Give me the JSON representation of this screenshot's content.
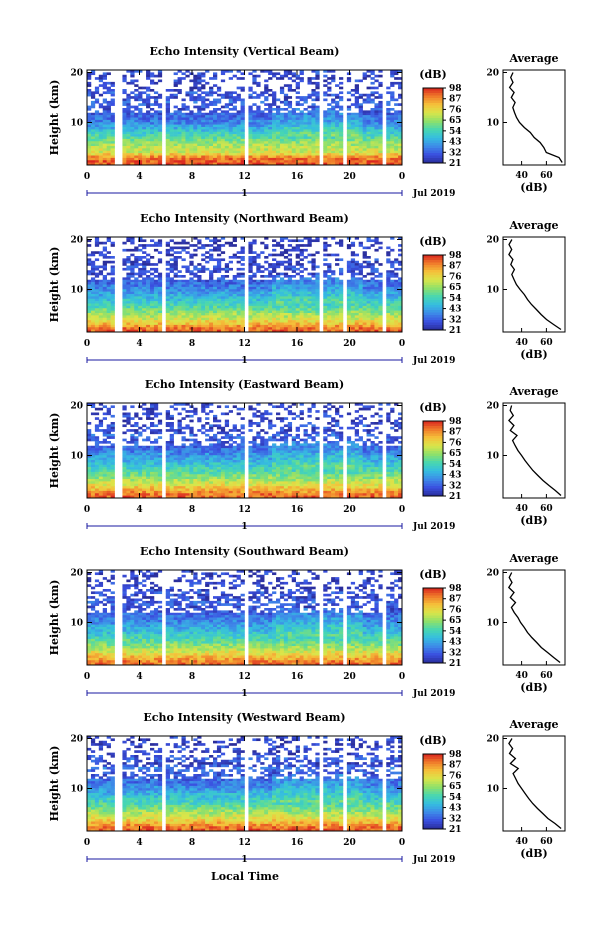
{
  "figure": {
    "xlabel_bottom": "Local Time",
    "date_label": "Jul 2019",
    "day_marker": "1"
  },
  "chart_data": [
    {
      "type": "heatmap",
      "title": "Echo Intensity (Vertical Beam)",
      "ylabel": "Height (km)",
      "x_ticks": [
        "0",
        "4",
        "8",
        "12",
        "16",
        "20",
        "0"
      ],
      "y_ticks": [
        "20",
        "10"
      ],
      "xlim": [
        0,
        24
      ],
      "ylim": [
        1.5,
        20.5
      ],
      "gaps_hours": [
        [
          2.2,
          2.6
        ],
        [
          5.8,
          6.1
        ],
        [
          12.1,
          12.4
        ],
        [
          17.6,
          17.9
        ],
        [
          19.4,
          19.7
        ],
        [
          22.5,
          22.8
        ]
      ],
      "colorbar": {
        "label": "(dB)",
        "ticks": [
          "98",
          "87",
          "76",
          "65",
          "54",
          "43",
          "32",
          "21"
        ],
        "range": [
          21,
          98
        ]
      },
      "profile": {
        "title": "Average",
        "xlabel": "(dB)",
        "x_ticks": [
          "40",
          "60"
        ],
        "y_ticks": [
          "20",
          "10"
        ],
        "xlim": [
          25,
          75
        ],
        "heights": [
          2,
          3,
          4,
          5,
          6,
          7,
          8,
          9,
          10,
          11,
          12,
          13,
          14,
          15,
          16,
          17,
          18,
          19,
          20
        ],
        "values": [
          73,
          70,
          60,
          58,
          55,
          50,
          47,
          42,
          38,
          36,
          34,
          33,
          35,
          32,
          34,
          30,
          33,
          31,
          33
        ]
      }
    },
    {
      "type": "heatmap",
      "title": "Echo Intensity (Northward Beam)",
      "ylabel": "Height (km)",
      "x_ticks": [
        "0",
        "4",
        "8",
        "12",
        "16",
        "20",
        "0"
      ],
      "y_ticks": [
        "20",
        "10"
      ],
      "xlim": [
        0,
        24
      ],
      "ylim": [
        1.5,
        20.5
      ],
      "gaps_hours": [
        [
          2.2,
          2.6
        ],
        [
          5.8,
          6.1
        ],
        [
          12.1,
          12.4
        ],
        [
          17.6,
          17.9
        ],
        [
          19.4,
          19.7
        ],
        [
          22.5,
          22.8
        ]
      ],
      "colorbar": {
        "label": "(dB)",
        "ticks": [
          "98",
          "87",
          "76",
          "65",
          "54",
          "43",
          "32",
          "21"
        ],
        "range": [
          21,
          98
        ]
      },
      "profile": {
        "title": "Average",
        "xlabel": "(dB)",
        "x_ticks": [
          "40",
          "60"
        ],
        "y_ticks": [
          "20",
          "10"
        ],
        "xlim": [
          25,
          75
        ],
        "heights": [
          2,
          3,
          4,
          5,
          6,
          7,
          8,
          9,
          10,
          11,
          12,
          13,
          14,
          15,
          16,
          17,
          18,
          19,
          20
        ],
        "values": [
          72,
          66,
          60,
          56,
          52,
          48,
          45,
          42,
          39,
          36,
          34,
          32,
          34,
          31,
          33,
          30,
          32,
          30,
          32
        ]
      }
    },
    {
      "type": "heatmap",
      "title": "Echo Intensity (Eastward Beam)",
      "ylabel": "Height (km)",
      "x_ticks": [
        "0",
        "4",
        "8",
        "12",
        "16",
        "20",
        "0"
      ],
      "y_ticks": [
        "20",
        "10"
      ],
      "xlim": [
        0,
        24
      ],
      "ylim": [
        1.5,
        20.5
      ],
      "gaps_hours": [
        [
          2.2,
          2.6
        ],
        [
          5.8,
          6.1
        ],
        [
          12.1,
          12.4
        ],
        [
          17.6,
          17.9
        ],
        [
          19.4,
          19.7
        ],
        [
          22.5,
          22.8
        ]
      ],
      "colorbar": {
        "label": "(dB)",
        "ticks": [
          "98",
          "87",
          "76",
          "65",
          "54",
          "43",
          "32",
          "21"
        ],
        "range": [
          21,
          98
        ]
      },
      "profile": {
        "title": "Average",
        "xlabel": "(dB)",
        "x_ticks": [
          "40",
          "60"
        ],
        "y_ticks": [
          "20",
          "10"
        ],
        "xlim": [
          25,
          75
        ],
        "heights": [
          2,
          3,
          4,
          5,
          6,
          7,
          8,
          9,
          10,
          11,
          12,
          13,
          14,
          15,
          16,
          17,
          18,
          19,
          20
        ],
        "values": [
          72,
          67,
          62,
          57,
          53,
          49,
          46,
          43,
          40,
          37,
          35,
          33,
          36,
          31,
          34,
          30,
          33,
          31,
          32
        ]
      }
    },
    {
      "type": "heatmap",
      "title": "Echo Intensity (Southward Beam)",
      "ylabel": "Height (km)",
      "x_ticks": [
        "0",
        "4",
        "8",
        "12",
        "16",
        "20",
        "0"
      ],
      "y_ticks": [
        "20",
        "10"
      ],
      "xlim": [
        0,
        24
      ],
      "ylim": [
        1.5,
        20.5
      ],
      "gaps_hours": [
        [
          2.2,
          2.6
        ],
        [
          5.8,
          6.1
        ],
        [
          12.1,
          12.4
        ],
        [
          17.6,
          17.9
        ],
        [
          19.4,
          19.7
        ],
        [
          22.5,
          22.8
        ]
      ],
      "colorbar": {
        "label": "(dB)",
        "ticks": [
          "98",
          "87",
          "76",
          "65",
          "54",
          "43",
          "32",
          "21"
        ],
        "range": [
          21,
          98
        ]
      },
      "profile": {
        "title": "Average",
        "xlabel": "(dB)",
        "x_ticks": [
          "40",
          "60"
        ],
        "y_ticks": [
          "20",
          "10"
        ],
        "xlim": [
          25,
          75
        ],
        "heights": [
          2,
          3,
          4,
          5,
          6,
          7,
          8,
          9,
          10,
          11,
          12,
          13,
          14,
          15,
          16,
          17,
          18,
          19,
          20
        ],
        "values": [
          71,
          66,
          61,
          56,
          52,
          48,
          45,
          42,
          39,
          37,
          34,
          32,
          35,
          31,
          34,
          30,
          32,
          30,
          32
        ]
      }
    },
    {
      "type": "heatmap",
      "title": "Echo Intensity (Westward Beam)",
      "ylabel": "Height (km)",
      "x_ticks": [
        "0",
        "4",
        "8",
        "12",
        "16",
        "20",
        "0"
      ],
      "y_ticks": [
        "20",
        "10"
      ],
      "xlim": [
        0,
        24
      ],
      "ylim": [
        1.5,
        20.5
      ],
      "gaps_hours": [
        [
          2.2,
          2.6
        ],
        [
          5.8,
          6.1
        ],
        [
          12.1,
          12.4
        ],
        [
          17.6,
          17.9
        ],
        [
          19.4,
          19.7
        ],
        [
          22.5,
          22.8
        ]
      ],
      "colorbar": {
        "label": "(dB)",
        "ticks": [
          "98",
          "87",
          "76",
          "65",
          "54",
          "43",
          "32",
          "21"
        ],
        "range": [
          21,
          98
        ]
      },
      "profile": {
        "title": "Average",
        "xlabel": "(dB)",
        "x_ticks": [
          "40",
          "60"
        ],
        "y_ticks": [
          "20",
          "10"
        ],
        "xlim": [
          25,
          75
        ],
        "heights": [
          2,
          3,
          4,
          5,
          6,
          7,
          8,
          9,
          10,
          11,
          12,
          13,
          14,
          15,
          16,
          17,
          18,
          19,
          20
        ],
        "values": [
          72,
          67,
          61,
          57,
          53,
          49,
          46,
          43,
          40,
          37,
          35,
          33,
          37,
          31,
          35,
          30,
          33,
          30,
          32
        ]
      }
    }
  ]
}
